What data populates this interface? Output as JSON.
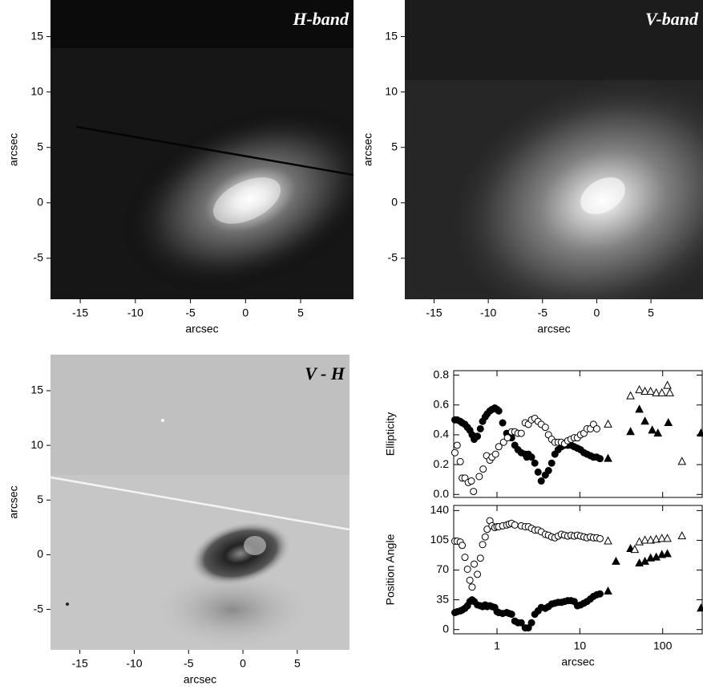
{
  "chart_data": [
    {
      "type": "image",
      "title": "H-band",
      "xlabel": "arcsec",
      "ylabel": "arcsec",
      "title_color": "#ffffff",
      "xlim": [
        -17.7,
        9.8
      ],
      "ylim": [
        -8.7,
        18.3
      ],
      "xticks": [
        -15,
        -10,
        -5,
        0,
        5
      ],
      "yticks": [
        -5,
        0,
        5,
        10,
        15
      ]
    },
    {
      "type": "image",
      "title": "V-band",
      "xlabel": "arcsec",
      "ylabel": "arcsec",
      "title_color": "#ffffff",
      "xlim": [
        -17.7,
        9.8
      ],
      "ylim": [
        -8.7,
        18.3
      ],
      "xticks": [
        -15,
        -10,
        -5,
        0,
        5
      ],
      "yticks": [
        -5,
        0,
        5,
        10,
        15
      ]
    },
    {
      "type": "image",
      "title": "V - H",
      "xlabel": "arcsec",
      "ylabel": "arcsec",
      "title_color": "#000000",
      "xlim": [
        -17.7,
        9.8
      ],
      "ylim": [
        -8.7,
        18.3
      ],
      "xticks": [
        -15,
        -10,
        -5,
        0,
        5
      ],
      "yticks": [
        -5,
        0,
        5,
        10,
        15
      ]
    },
    {
      "type": "scatter",
      "ylabel": "Ellipticity",
      "xscale": "log",
      "xtick_labels": false,
      "xlim": [
        0.3,
        300
      ],
      "ylim": [
        -0.02,
        0.83
      ],
      "xticks": [
        1,
        10,
        100
      ],
      "yticks": [
        {
          "value": 0,
          "label": "0.0"
        },
        0.2,
        0.4,
        0.6,
        0.8
      ],
      "series": [
        {
          "marker": "filled-circle",
          "color": "#000000",
          "x": [
            0.31,
            0.33,
            0.36,
            0.38,
            0.41,
            0.44,
            0.47,
            0.5,
            0.53,
            0.58,
            0.63,
            0.67,
            0.72,
            0.76,
            0.82,
            0.87,
            0.94,
            1.0,
            1.05,
            1.17,
            1.31,
            1.4,
            1.5,
            1.64,
            1.79,
            1.96,
            2.19,
            2.29,
            2.39,
            2.61,
            2.86,
            3.13,
            3.42,
            3.83,
            4.18,
            4.57,
            5.0,
            5.47,
            5.98,
            6.54,
            7.15,
            7.82,
            8.55,
            9.35,
            10.2,
            11.2,
            12.2,
            13.4,
            14.6,
            16.0,
            17.5
          ],
          "values": [
            0.5,
            0.5,
            0.49,
            0.48,
            0.47,
            0.45,
            0.43,
            0.4,
            0.37,
            0.39,
            0.44,
            0.49,
            0.52,
            0.54,
            0.56,
            0.57,
            0.58,
            0.57,
            0.56,
            0.48,
            0.41,
            0.41,
            0.38,
            0.33,
            0.3,
            0.28,
            0.27,
            0.25,
            0.27,
            0.25,
            0.21,
            0.15,
            0.09,
            0.13,
            0.16,
            0.21,
            0.27,
            0.3,
            0.32,
            0.33,
            0.33,
            0.33,
            0.32,
            0.31,
            0.3,
            0.28,
            0.27,
            0.26,
            0.25,
            0.25,
            0.24
          ]
        },
        {
          "marker": "filled-triangle",
          "color": "#000000",
          "x": [
            21.9,
            40.9,
            52.3,
            61.1,
            74.8,
            87.5,
            117,
            290
          ],
          "values": [
            0.24,
            0.42,
            0.57,
            0.49,
            0.43,
            0.41,
            0.48,
            0.41
          ]
        },
        {
          "marker": "open-circle",
          "color": "#000000",
          "x": [
            0.31,
            0.33,
            0.36,
            0.38,
            0.41,
            0.45,
            0.49,
            0.52,
            0.61,
            0.68,
            0.75,
            0.82,
            0.87,
            0.96,
            1.05,
            1.2,
            1.34,
            1.5,
            1.64,
            1.79,
            1.96,
            2.19,
            2.39,
            2.61,
            2.86,
            3.13,
            3.42,
            3.83,
            4.18,
            4.57,
            5.0,
            5.47,
            5.98,
            6.54,
            7.15,
            7.82,
            8.55,
            9.35,
            10.2,
            11.2,
            12.2,
            13.4,
            14.6,
            16.0
          ],
          "values": [
            0.28,
            0.33,
            0.22,
            0.11,
            0.11,
            0.08,
            0.09,
            0.02,
            0.12,
            0.17,
            0.26,
            0.23,
            0.25,
            0.27,
            0.32,
            0.35,
            0.38,
            0.42,
            0.42,
            0.41,
            0.41,
            0.48,
            0.47,
            0.5,
            0.51,
            0.49,
            0.47,
            0.45,
            0.4,
            0.37,
            0.35,
            0.35,
            0.35,
            0.34,
            0.36,
            0.37,
            0.38,
            0.38,
            0.4,
            0.41,
            0.44,
            0.44,
            0.47,
            0.44
          ]
        },
        {
          "marker": "open-triangle",
          "color": "#000000",
          "x": [
            21.9,
            40.9,
            52.3,
            61.1,
            71.5,
            83.6,
            97.8,
            114,
            122,
            171
          ],
          "values": [
            0.47,
            0.66,
            0.7,
            0.69,
            0.69,
            0.68,
            0.68,
            0.73,
            0.68,
            0.22
          ]
        }
      ]
    },
    {
      "type": "scatter",
      "xlabel": "arcsec",
      "ylabel": "Position Angle",
      "xscale": "log",
      "xtick_labels": true,
      "xlim": [
        0.3,
        300
      ],
      "ylim": [
        -5,
        146
      ],
      "xticks": [
        1,
        10,
        100
      ],
      "yticks": [
        0,
        35,
        70,
        105,
        140
      ],
      "series": [
        {
          "marker": "filled-circle",
          "color": "#000000",
          "x": [
            0.31,
            0.33,
            0.36,
            0.38,
            0.41,
            0.44,
            0.47,
            0.5,
            0.53,
            0.58,
            0.63,
            0.67,
            0.72,
            0.76,
            0.82,
            0.87,
            0.94,
            1.0,
            1.05,
            1.17,
            1.31,
            1.4,
            1.5,
            1.64,
            1.79,
            1.96,
            2.19,
            2.39,
            2.61,
            2.86,
            3.13,
            3.42,
            3.83,
            4.18,
            4.57,
            5.0,
            5.47,
            5.98,
            6.54,
            7.15,
            7.82,
            8.55,
            9.35,
            10.2,
            11.2,
            12.2,
            13.4,
            14.6,
            16.0,
            17.5
          ],
          "values": [
            20,
            21,
            22,
            23,
            25,
            28,
            33,
            35,
            33,
            29,
            28,
            27,
            29,
            27,
            28,
            27,
            26,
            21,
            20,
            19,
            20,
            19,
            18,
            10,
            8,
            8,
            2,
            2,
            8,
            18,
            22,
            26,
            25,
            27,
            30,
            31,
            32,
            32,
            33,
            34,
            34,
            33,
            28,
            29,
            31,
            33,
            36,
            39,
            41,
            42
          ]
        },
        {
          "marker": "filled-triangle",
          "color": "#000000",
          "x": [
            21.9,
            27.3,
            40.9,
            52.3,
            61.1,
            71.5,
            83.6,
            97.8,
            114,
            290
          ],
          "values": [
            45,
            80,
            95,
            78,
            80,
            84,
            85,
            88,
            89,
            25
          ]
        },
        {
          "marker": "open-circle",
          "color": "#000000",
          "x": [
            0.31,
            0.33,
            0.36,
            0.38,
            0.41,
            0.44,
            0.47,
            0.5,
            0.53,
            0.58,
            0.63,
            0.67,
            0.72,
            0.76,
            0.82,
            0.87,
            0.94,
            1.0,
            1.05,
            1.17,
            1.31,
            1.4,
            1.5,
            1.64,
            1.96,
            2.19,
            2.39,
            2.61,
            2.86,
            3.13,
            3.42,
            3.83,
            4.18,
            4.57,
            5.0,
            5.47,
            5.98,
            6.54,
            7.15,
            7.82,
            8.55,
            9.35,
            10.2,
            11.2,
            12.2,
            13.4,
            14.6,
            16.0,
            17.5
          ],
          "values": [
            104,
            104,
            103,
            99,
            85,
            71,
            58,
            50,
            77,
            65,
            84,
            100,
            109,
            118,
            128,
            122,
            120,
            121,
            121,
            122,
            123,
            124,
            125,
            123,
            122,
            121,
            121,
            119,
            117,
            117,
            115,
            112,
            111,
            109,
            108,
            110,
            112,
            111,
            110,
            111,
            110,
            111,
            110,
            109,
            108,
            109,
            108,
            108,
            107
          ]
        },
        {
          "marker": "open-triangle",
          "color": "#000000",
          "x": [
            21.9,
            46,
            52.3,
            61.1,
            71.5,
            83.6,
            97.8,
            114,
            171
          ],
          "values": [
            104,
            94,
            103,
            105,
            105,
            106,
            107,
            107,
            110
          ]
        }
      ]
    }
  ]
}
